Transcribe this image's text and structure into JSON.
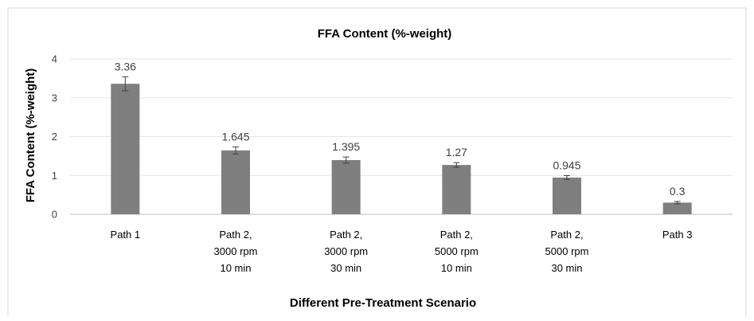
{
  "chart_data": {
    "type": "bar",
    "title": "FFA Content (%-weight)",
    "xlabel": "Different Pre-Treatment Scenario",
    "ylabel": "FFA Content (%-weight)",
    "ylim": [
      0,
      4
    ],
    "yticks": [
      0,
      1,
      2,
      3,
      4
    ],
    "grid": true,
    "legend": "none",
    "bar_color": "#7f7f7f",
    "categories": [
      [
        "Path 1"
      ],
      [
        "Path 2,",
        "3000 rpm",
        "10 min"
      ],
      [
        "Path 2,",
        "3000 rpm",
        "30 min"
      ],
      [
        "Path 2,",
        "5000 rpm",
        "10 min"
      ],
      [
        "Path 2,",
        "5000 rpm",
        "30 min"
      ],
      [
        "Path 3"
      ]
    ],
    "values": [
      3.36,
      1.645,
      1.395,
      1.27,
      0.945,
      0.3
    ],
    "value_labels": [
      "3.36",
      "1.645",
      "1.395",
      "1.27",
      "0.945",
      "0.3"
    ],
    "error": [
      0.18,
      0.09,
      0.08,
      0.06,
      0.05,
      0.03
    ]
  }
}
